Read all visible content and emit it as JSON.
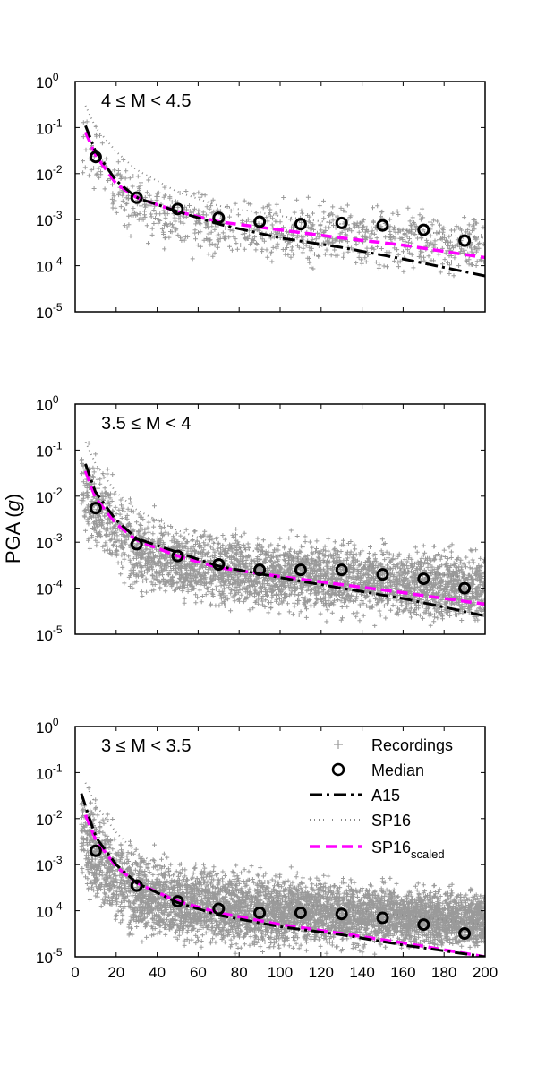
{
  "chart_data": {
    "type": "scatter",
    "ylabel_pre": "PGA (",
    "ylabel_italic": "g",
    "ylabel_post": ")",
    "xlabel": "",
    "xlim": [
      0,
      200
    ],
    "x_ticks": [
      0,
      20,
      40,
      60,
      80,
      100,
      120,
      140,
      160,
      180,
      200
    ],
    "ylim": [
      1e-05,
      1
    ],
    "y_scale": "log",
    "y_tick_labels": [
      {
        "base": "10",
        "exp": "0"
      },
      {
        "base": "10",
        "exp": "-1"
      },
      {
        "base": "10",
        "exp": "-2"
      },
      {
        "base": "10",
        "exp": "-3"
      },
      {
        "base": "10",
        "exp": "-4"
      },
      {
        "base": "10",
        "exp": "-5"
      }
    ],
    "legend": {
      "placement": "top-right",
      "entries": [
        {
          "label": "Recordings",
          "style": "plus-marker",
          "color": "#999999"
        },
        {
          "label": "Median",
          "style": "circle-marker",
          "color": "#000000"
        },
        {
          "label": "A15",
          "style": "dash-dot",
          "color": "#000000"
        },
        {
          "label": "SP16",
          "style": "dotted",
          "color": "#888888"
        },
        {
          "label": "SP16",
          "sub": "scaled",
          "style": "dashed",
          "color": "#ff00ff"
        }
      ]
    },
    "panels": [
      {
        "title": "4 ≤ M < 4.5",
        "median": {
          "x": [
            10,
            30,
            50,
            70,
            90,
            110,
            130,
            150,
            170,
            190
          ],
          "y": [
            0.023,
            0.003,
            0.0017,
            0.0011,
            0.0009,
            0.0008,
            0.00085,
            0.00075,
            0.0006,
            0.00035
          ]
        },
        "A15": {
          "x": [
            5,
            10,
            20,
            30,
            50,
            70,
            100,
            130,
            160,
            200
          ],
          "y": [
            0.11,
            0.03,
            0.007,
            0.003,
            0.0015,
            0.0008,
            0.0004,
            0.00025,
            0.00014,
            6e-05
          ]
        },
        "SP16_scaled": {
          "x": [
            5,
            10,
            20,
            30,
            50,
            70,
            100,
            130,
            160,
            200
          ],
          "y": [
            0.08,
            0.025,
            0.006,
            0.003,
            0.0015,
            0.0009,
            0.0006,
            0.0004,
            0.00028,
            0.00015
          ]
        },
        "SP16": {
          "x": [
            5,
            10,
            20,
            30,
            50,
            70,
            100,
            130,
            160,
            200
          ],
          "y": [
            0.3,
            0.1,
            0.03,
            0.012,
            0.004,
            0.002,
            0.0012,
            0.0008,
            0.0006,
            0.0004
          ]
        },
        "recordings_density": "sparse",
        "recordings_band": {
          "x": [
            3,
            10,
            20,
            30,
            50,
            70,
            100,
            130,
            160,
            200
          ],
          "lo": [
            0.004,
            0.002,
            0.0004,
            0.0002,
            0.0001,
            8e-05,
            7e-05,
            6e-05,
            5e-05,
            3e-05
          ],
          "hi": [
            0.5,
            0.3,
            0.05,
            0.02,
            0.008,
            0.005,
            0.004,
            0.004,
            0.003,
            0.002
          ]
        }
      },
      {
        "title": "3.5 ≤ M < 4",
        "median": {
          "x": [
            10,
            30,
            50,
            70,
            90,
            110,
            130,
            150,
            170,
            190
          ],
          "y": [
            0.0055,
            0.0009,
            0.0005,
            0.00033,
            0.00025,
            0.00025,
            0.00025,
            0.0002,
            0.00016,
            0.0001
          ]
        },
        "A15": {
          "x": [
            5,
            10,
            20,
            30,
            50,
            70,
            100,
            130,
            160,
            200
          ],
          "y": [
            0.05,
            0.012,
            0.003,
            0.0012,
            0.0006,
            0.0003,
            0.00017,
            0.0001,
            6e-05,
            2.5e-05
          ]
        },
        "SP16_scaled": {
          "x": [
            5,
            10,
            20,
            30,
            50,
            70,
            100,
            130,
            160,
            200
          ],
          "y": [
            0.035,
            0.009,
            0.0025,
            0.0011,
            0.0005,
            0.00028,
            0.00018,
            0.00012,
            8e-05,
            4.5e-05
          ]
        },
        "SP16": {
          "x": [
            5,
            10,
            20,
            30,
            50,
            70,
            100,
            130,
            160,
            200
          ],
          "y": [
            0.15,
            0.05,
            0.012,
            0.005,
            0.0018,
            0.0009,
            0.0005,
            0.00035,
            0.00025,
            0.00015
          ]
        },
        "recordings_density": "dense",
        "recordings_band": {
          "x": [
            3,
            10,
            20,
            30,
            50,
            70,
            100,
            130,
            160,
            200
          ],
          "lo": [
            0.0008,
            0.0003,
            8e-05,
            4e-05,
            3e-05,
            2e-05,
            1.8e-05,
            1.5e-05,
            1.2e-05,
            1e-05
          ],
          "hi": [
            0.3,
            0.15,
            0.03,
            0.01,
            0.004,
            0.003,
            0.002,
            0.0018,
            0.0015,
            0.001
          ]
        }
      },
      {
        "title": "3 ≤ M < 3.5",
        "median": {
          "x": [
            10,
            30,
            50,
            70,
            90,
            110,
            130,
            150,
            170,
            190
          ],
          "y": [
            0.002,
            0.00035,
            0.00016,
            0.00011,
            9e-05,
            9e-05,
            8.5e-05,
            7e-05,
            5e-05,
            3.2e-05
          ]
        },
        "A15": {
          "x": [
            3,
            10,
            20,
            30,
            50,
            70,
            100,
            130,
            160,
            200
          ],
          "y": [
            0.035,
            0.004,
            0.001,
            0.0004,
            0.00015,
            8e-05,
            4.5e-05,
            3e-05,
            1.8e-05,
            1e-05
          ]
        },
        "SP16_scaled": {
          "x": [
            5,
            10,
            20,
            30,
            50,
            70,
            100,
            130,
            160,
            200
          ],
          "y": [
            0.012,
            0.0035,
            0.0009,
            0.0004,
            0.00016,
            9e-05,
            5e-05,
            3.2e-05,
            2e-05,
            1e-05
          ]
        },
        "SP16": {
          "x": [
            5,
            10,
            20,
            30,
            50,
            70,
            100,
            130,
            160,
            200
          ],
          "y": [
            0.06,
            0.02,
            0.005,
            0.0018,
            0.0006,
            0.0003,
            0.00016,
            0.00011,
            8e-05,
            5e-05
          ]
        },
        "recordings_density": "very-dense",
        "recordings_band": {
          "x": [
            3,
            10,
            20,
            30,
            50,
            70,
            100,
            130,
            160,
            200
          ],
          "lo": [
            0.0003,
            5e-05,
            2e-05,
            1.2e-05,
            1e-05,
            1e-05,
            1e-05,
            1e-05,
            1e-05,
            1e-05
          ],
          "hi": [
            0.1,
            0.05,
            0.01,
            0.004,
            0.002,
            0.0015,
            0.001,
            0.0008,
            0.0006,
            0.0004
          ]
        }
      }
    ],
    "colors": {
      "recordings": "#9a9a9a",
      "median": "#000000",
      "A15": "#000000",
      "SP16": "#888888",
      "SP16_scaled": "#ff00ff"
    }
  }
}
